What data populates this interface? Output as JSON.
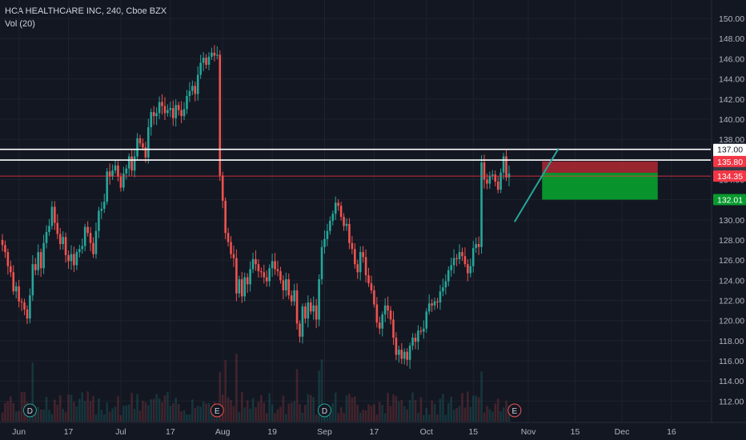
{
  "header": {
    "symbol_line": "HCA HEALTHCARE INC, 240, Cboe BZX",
    "volume_line": "Vol (20)"
  },
  "colors": {
    "background": "#131722",
    "grid": "#1e222d",
    "up": "#26a69a",
    "down": "#ef5350",
    "level_line": "#ffffff",
    "entry_line": "#f23645",
    "stop_zone": "#b22833",
    "target_zone": "#089a2e",
    "trendline": "#26a69a"
  },
  "chart_data": {
    "type": "candlestick",
    "y_axis": {
      "min": 111,
      "max": 150.8,
      "ticks": [
        112,
        114,
        116,
        118,
        120,
        122,
        124,
        126,
        128,
        130,
        132,
        134,
        136,
        138,
        140,
        142,
        144,
        146,
        148,
        150
      ],
      "tick_labels": [
        "112.00",
        "114.00",
        "116.00",
        "118.00",
        "120.00",
        "122.00",
        "124.00",
        "126.00",
        "128.00",
        "130.00",
        "132.00",
        "134.00",
        "136.00",
        "138.00",
        "140.00",
        "142.00",
        "144.00",
        "146.00",
        "148.00",
        "150.00"
      ]
    },
    "x_axis": {
      "labels": [
        "Jun",
        "17",
        "Jul",
        "17",
        "Aug",
        "19",
        "Sep",
        "17",
        "Oct",
        "15",
        "Nov",
        "15",
        "Dec",
        "16"
      ],
      "label_bar_index": [
        6,
        24,
        43,
        61,
        80,
        98,
        117,
        135,
        154,
        171,
        191,
        208,
        225,
        243
      ]
    },
    "price_levels": [
      {
        "price": 137.0,
        "label": "137.00",
        "style": "horizontal-line",
        "color": "#ffffff",
        "tag_bg": "#ffffff",
        "tag_fg": "#131722"
      },
      {
        "price": 135.94,
        "label": "135.94",
        "style": "horizontal-line",
        "color": "#ffffff",
        "tag_bg": "#ffffff",
        "tag_fg": "#131722"
      },
      {
        "price": 135.8,
        "label": "135.80",
        "style": "tag",
        "color": "#ef5350",
        "tag_bg": "#f23645",
        "tag_fg": "#ffffff"
      },
      {
        "price": 134.67,
        "label": "134.67",
        "style": "tag",
        "color": "#363a45",
        "tag_bg": "#363a45",
        "tag_fg": "#ffffff"
      },
      {
        "price": 134.35,
        "label": "134.35",
        "style": "tag",
        "color": "#ef5350",
        "tag_bg": "#f23645",
        "tag_fg": "#ffffff"
      },
      {
        "price": 132.01,
        "label": "132.01",
        "style": "tag",
        "color": "#089a2e",
        "tag_bg": "#089a2e",
        "tag_fg": "#ffffff"
      }
    ],
    "position": {
      "entry": 134.67,
      "stop": 135.8,
      "target": 132.01,
      "start_bar": 196,
      "end_bar": 238
    },
    "entry_line": {
      "price": 134.35,
      "color": "#f23645"
    },
    "trendline": {
      "from_bar": 186,
      "from_price": 129.8,
      "to_bar": 202,
      "to_price": 137.1
    },
    "event_markers": [
      {
        "bar": 10,
        "label": "D"
      },
      {
        "bar": 78,
        "label": "E"
      },
      {
        "bar": 117,
        "label": "D"
      },
      {
        "bar": 186,
        "label": "E"
      }
    ],
    "closes": [
      127.5,
      126.8,
      125.4,
      124.8,
      122.9,
      123.4,
      121.9,
      121.8,
      121.1,
      120.2,
      122.5,
      125.6,
      125.0,
      126.8,
      125.2,
      127.7,
      128.8,
      129.4,
      131.3,
      129.7,
      128.6,
      127.6,
      128.3,
      126.5,
      125.9,
      126.6,
      125.5,
      126.8,
      127.1,
      127.4,
      129.3,
      128.7,
      127.7,
      126.6,
      128.9,
      130.9,
      131.1,
      131.8,
      134.8,
      134.3,
      134.9,
      135.4,
      134.3,
      133.2,
      134.6,
      135.1,
      136.3,
      134.9,
      136.3,
      138.1,
      137.6,
      137.2,
      136.2,
      139.2,
      140.7,
      140.3,
      140.6,
      141.7,
      141.3,
      140.6,
      140.9,
      141.1,
      140.1,
      141.4,
      140.9,
      140.3,
      141.0,
      142.3,
      142.8,
      143.3,
      142.5,
      144.4,
      145.6,
      146.1,
      145.4,
      146.2,
      146.6,
      146.3,
      146.4,
      134.4,
      131.9,
      128.7,
      127.8,
      126.6,
      126.2,
      122.7,
      124.1,
      122.4,
      124.3,
      123.6,
      125.1,
      126.1,
      125.6,
      124.9,
      124.8,
      124.3,
      123.9,
      125.2,
      125.9,
      125.1,
      124.9,
      124.0,
      123.0,
      124.1,
      122.5,
      121.9,
      123.0,
      119.7,
      118.4,
      121.4,
      120.2,
      121.8,
      120.9,
      121.5,
      120.1,
      124.1,
      127.3,
      128.1,
      128.9,
      129.9,
      130.6,
      131.7,
      131.4,
      130.3,
      129.4,
      129.6,
      127.7,
      127.1,
      125.6,
      124.8,
      126.8,
      126.3,
      124.5,
      123.7,
      123.0,
      121.6,
      119.8,
      119.2,
      120.6,
      121.5,
      121.0,
      120.1,
      118.3,
      116.6,
      117.1,
      116.2,
      116.9,
      116.1,
      117.5,
      118.3,
      117.9,
      119.0,
      118.9,
      119.2,
      120.9,
      121.7,
      121.5,
      121.9,
      121.8,
      122.9,
      123.3,
      123.9,
      125.0,
      125.5,
      126.2,
      126.1,
      126.8,
      126.4,
      125.6,
      124.7,
      125.4,
      127.2,
      127.6,
      127.3,
      135.7,
      134.0,
      133.6,
      134.4,
      134.5,
      133.8,
      133.0,
      134.7,
      136.3,
      134.2,
      134.6
    ]
  }
}
